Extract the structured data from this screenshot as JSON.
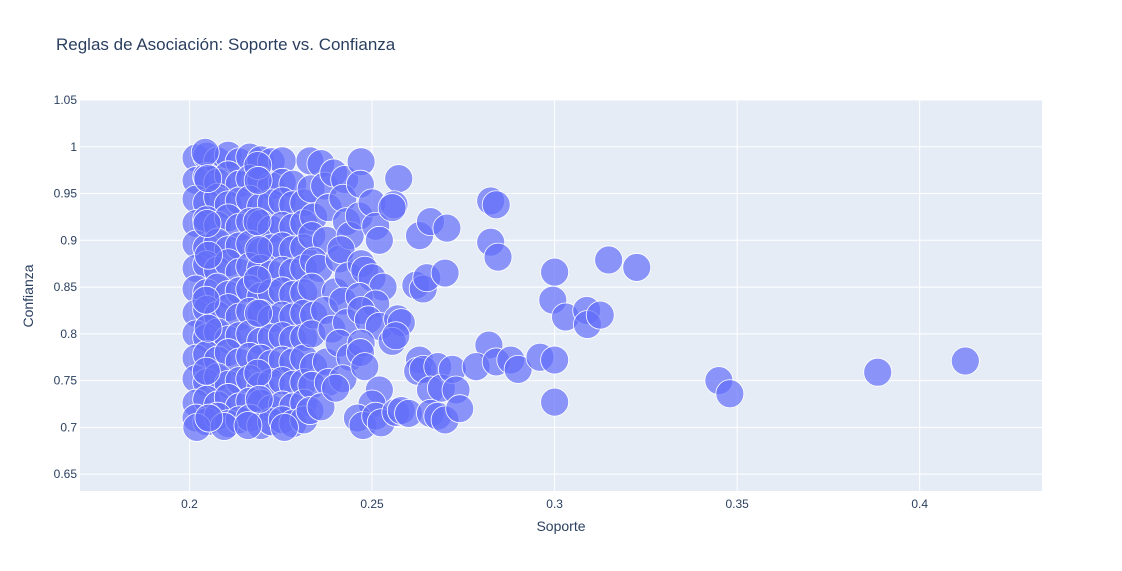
{
  "chart_data": {
    "type": "scatter",
    "title": "Reglas de Asociación: Soporte vs. Confianza",
    "xlabel": "Soporte",
    "ylabel": "Confianza",
    "xlim": [
      0.17,
      0.4335
    ],
    "ylim": [
      0.632,
      1.05
    ],
    "xticks": [
      0.2,
      0.25,
      0.3,
      0.35,
      0.4
    ],
    "xtick_labels": [
      "0.2",
      "0.25",
      "0.3",
      "0.35",
      "0.4"
    ],
    "yticks": [
      0.65,
      0.7,
      0.75,
      0.8,
      0.85,
      0.9,
      0.95,
      1,
      1.05
    ],
    "ytick_labels": [
      "0.65",
      "0.7",
      "0.75",
      "0.8",
      "0.85",
      "0.9",
      "0.95",
      "1",
      "1.05"
    ],
    "grid": true,
    "colors": {
      "plot_bg": "#e5ecf6",
      "marker": "#636efa",
      "text": "#2a3f5f"
    },
    "marker_opacity": 0.7,
    "points": [
      {
        "x": 0.2018,
        "y": 0.988
      },
      {
        "x": 0.2047,
        "y": 0.99
      },
      {
        "x": 0.2077,
        "y": 0.985
      },
      {
        "x": 0.2106,
        "y": 0.991
      },
      {
        "x": 0.2136,
        "y": 0.984
      },
      {
        "x": 0.2165,
        "y": 0.989
      },
      {
        "x": 0.2195,
        "y": 0.986
      },
      {
        "x": 0.2224,
        "y": 0.984
      },
      {
        "x": 0.2254,
        "y": 0.985
      },
      {
        "x": 0.2018,
        "y": 0.964
      },
      {
        "x": 0.2047,
        "y": 0.968
      },
      {
        "x": 0.2077,
        "y": 0.962
      },
      {
        "x": 0.2106,
        "y": 0.97
      },
      {
        "x": 0.2136,
        "y": 0.96
      },
      {
        "x": 0.2165,
        "y": 0.966
      },
      {
        "x": 0.2195,
        "y": 0.964
      },
      {
        "x": 0.2224,
        "y": 0.958
      },
      {
        "x": 0.2254,
        "y": 0.962
      },
      {
        "x": 0.2283,
        "y": 0.96
      },
      {
        "x": 0.2018,
        "y": 0.944
      },
      {
        "x": 0.2047,
        "y": 0.94
      },
      {
        "x": 0.2077,
        "y": 0.946
      },
      {
        "x": 0.2106,
        "y": 0.938
      },
      {
        "x": 0.2136,
        "y": 0.942
      },
      {
        "x": 0.2165,
        "y": 0.944
      },
      {
        "x": 0.2195,
        "y": 0.936
      },
      {
        "x": 0.2224,
        "y": 0.94
      },
      {
        "x": 0.2254,
        "y": 0.942
      },
      {
        "x": 0.2283,
        "y": 0.938
      },
      {
        "x": 0.2313,
        "y": 0.94
      },
      {
        "x": 0.2018,
        "y": 0.918
      },
      {
        "x": 0.2047,
        "y": 0.922
      },
      {
        "x": 0.2077,
        "y": 0.916
      },
      {
        "x": 0.2106,
        "y": 0.924
      },
      {
        "x": 0.2136,
        "y": 0.914
      },
      {
        "x": 0.2165,
        "y": 0.92
      },
      {
        "x": 0.2195,
        "y": 0.918
      },
      {
        "x": 0.2224,
        "y": 0.912
      },
      {
        "x": 0.2254,
        "y": 0.916
      },
      {
        "x": 0.2283,
        "y": 0.914
      },
      {
        "x": 0.2313,
        "y": 0.918
      },
      {
        "x": 0.2018,
        "y": 0.896
      },
      {
        "x": 0.2047,
        "y": 0.892
      },
      {
        "x": 0.2077,
        "y": 0.898
      },
      {
        "x": 0.2106,
        "y": 0.89
      },
      {
        "x": 0.2136,
        "y": 0.894
      },
      {
        "x": 0.2165,
        "y": 0.896
      },
      {
        "x": 0.2195,
        "y": 0.888
      },
      {
        "x": 0.2224,
        "y": 0.892
      },
      {
        "x": 0.2254,
        "y": 0.894
      },
      {
        "x": 0.2283,
        "y": 0.89
      },
      {
        "x": 0.2313,
        "y": 0.892
      },
      {
        "x": 0.2018,
        "y": 0.87
      },
      {
        "x": 0.2047,
        "y": 0.874
      },
      {
        "x": 0.2077,
        "y": 0.868
      },
      {
        "x": 0.2106,
        "y": 0.876
      },
      {
        "x": 0.2136,
        "y": 0.866
      },
      {
        "x": 0.2165,
        "y": 0.872
      },
      {
        "x": 0.2195,
        "y": 0.87
      },
      {
        "x": 0.2224,
        "y": 0.864
      },
      {
        "x": 0.2254,
        "y": 0.868
      },
      {
        "x": 0.2283,
        "y": 0.866
      },
      {
        "x": 0.2313,
        "y": 0.87
      },
      {
        "x": 0.2018,
        "y": 0.848
      },
      {
        "x": 0.2047,
        "y": 0.844
      },
      {
        "x": 0.2077,
        "y": 0.85
      },
      {
        "x": 0.2106,
        "y": 0.842
      },
      {
        "x": 0.2136,
        "y": 0.846
      },
      {
        "x": 0.2165,
        "y": 0.848
      },
      {
        "x": 0.2195,
        "y": 0.84
      },
      {
        "x": 0.2224,
        "y": 0.844
      },
      {
        "x": 0.2254,
        "y": 0.846
      },
      {
        "x": 0.2283,
        "y": 0.842
      },
      {
        "x": 0.2313,
        "y": 0.844
      },
      {
        "x": 0.2018,
        "y": 0.822
      },
      {
        "x": 0.2047,
        "y": 0.826
      },
      {
        "x": 0.2077,
        "y": 0.82
      },
      {
        "x": 0.2106,
        "y": 0.828
      },
      {
        "x": 0.2136,
        "y": 0.818
      },
      {
        "x": 0.2165,
        "y": 0.824
      },
      {
        "x": 0.2195,
        "y": 0.822
      },
      {
        "x": 0.2224,
        "y": 0.816
      },
      {
        "x": 0.2254,
        "y": 0.82
      },
      {
        "x": 0.2283,
        "y": 0.818
      },
      {
        "x": 0.2313,
        "y": 0.822
      },
      {
        "x": 0.2018,
        "y": 0.8
      },
      {
        "x": 0.2047,
        "y": 0.796
      },
      {
        "x": 0.2077,
        "y": 0.802
      },
      {
        "x": 0.2106,
        "y": 0.794
      },
      {
        "x": 0.2136,
        "y": 0.798
      },
      {
        "x": 0.2165,
        "y": 0.8
      },
      {
        "x": 0.2195,
        "y": 0.792
      },
      {
        "x": 0.2224,
        "y": 0.796
      },
      {
        "x": 0.2254,
        "y": 0.798
      },
      {
        "x": 0.2283,
        "y": 0.794
      },
      {
        "x": 0.2313,
        "y": 0.796
      },
      {
        "x": 0.2018,
        "y": 0.774
      },
      {
        "x": 0.2047,
        "y": 0.778
      },
      {
        "x": 0.2077,
        "y": 0.772
      },
      {
        "x": 0.2106,
        "y": 0.78
      },
      {
        "x": 0.2136,
        "y": 0.77
      },
      {
        "x": 0.2165,
        "y": 0.776
      },
      {
        "x": 0.2195,
        "y": 0.774
      },
      {
        "x": 0.2224,
        "y": 0.768
      },
      {
        "x": 0.2254,
        "y": 0.772
      },
      {
        "x": 0.2283,
        "y": 0.77
      },
      {
        "x": 0.2313,
        "y": 0.774
      },
      {
        "x": 0.2018,
        "y": 0.752
      },
      {
        "x": 0.2047,
        "y": 0.748
      },
      {
        "x": 0.2077,
        "y": 0.754
      },
      {
        "x": 0.2106,
        "y": 0.746
      },
      {
        "x": 0.2136,
        "y": 0.75
      },
      {
        "x": 0.2165,
        "y": 0.752
      },
      {
        "x": 0.2195,
        "y": 0.744
      },
      {
        "x": 0.2224,
        "y": 0.748
      },
      {
        "x": 0.2254,
        "y": 0.75
      },
      {
        "x": 0.2283,
        "y": 0.746
      },
      {
        "x": 0.2313,
        "y": 0.748
      },
      {
        "x": 0.2018,
        "y": 0.726
      },
      {
        "x": 0.2047,
        "y": 0.73
      },
      {
        "x": 0.2077,
        "y": 0.724
      },
      {
        "x": 0.2106,
        "y": 0.732
      },
      {
        "x": 0.2136,
        "y": 0.722
      },
      {
        "x": 0.2165,
        "y": 0.728
      },
      {
        "x": 0.2195,
        "y": 0.726
      },
      {
        "x": 0.2224,
        "y": 0.72
      },
      {
        "x": 0.2254,
        "y": 0.724
      },
      {
        "x": 0.2283,
        "y": 0.722
      },
      {
        "x": 0.2313,
        "y": 0.726
      },
      {
        "x": 0.2018,
        "y": 0.71
      },
      {
        "x": 0.2047,
        "y": 0.706
      },
      {
        "x": 0.2077,
        "y": 0.712
      },
      {
        "x": 0.2106,
        "y": 0.704
      },
      {
        "x": 0.2136,
        "y": 0.708
      },
      {
        "x": 0.2165,
        "y": 0.71
      },
      {
        "x": 0.2195,
        "y": 0.702
      },
      {
        "x": 0.2224,
        "y": 0.706
      },
      {
        "x": 0.2254,
        "y": 0.708
      },
      {
        "x": 0.2283,
        "y": 0.704
      },
      {
        "x": 0.2313,
        "y": 0.708
      },
      {
        "x": 0.202,
        "y": 0.7
      },
      {
        "x": 0.2095,
        "y": 0.701
      },
      {
        "x": 0.216,
        "y": 0.702
      },
      {
        "x": 0.226,
        "y": 0.7
      },
      {
        "x": 0.2043,
        "y": 0.994
      },
      {
        "x": 0.205,
        "y": 0.966
      },
      {
        "x": 0.2048,
        "y": 0.918
      },
      {
        "x": 0.2052,
        "y": 0.884
      },
      {
        "x": 0.2045,
        "y": 0.836
      },
      {
        "x": 0.2051,
        "y": 0.806
      },
      {
        "x": 0.2046,
        "y": 0.76
      },
      {
        "x": 0.2053,
        "y": 0.71
      },
      {
        "x": 0.2187,
        "y": 0.98
      },
      {
        "x": 0.2188,
        "y": 0.964
      },
      {
        "x": 0.2185,
        "y": 0.92
      },
      {
        "x": 0.219,
        "y": 0.89
      },
      {
        "x": 0.2186,
        "y": 0.858
      },
      {
        "x": 0.2189,
        "y": 0.822
      },
      {
        "x": 0.2187,
        "y": 0.758
      },
      {
        "x": 0.2191,
        "y": 0.73
      },
      {
        "x": 0.233,
        "y": 0.985
      },
      {
        "x": 0.236,
        "y": 0.982
      },
      {
        "x": 0.2333,
        "y": 0.955
      },
      {
        "x": 0.237,
        "y": 0.958
      },
      {
        "x": 0.234,
        "y": 0.925
      },
      {
        "x": 0.238,
        "y": 0.935
      },
      {
        "x": 0.2335,
        "y": 0.905
      },
      {
        "x": 0.2375,
        "y": 0.9
      },
      {
        "x": 0.234,
        "y": 0.878
      },
      {
        "x": 0.2355,
        "y": 0.87
      },
      {
        "x": 0.241,
        "y": 0.88
      },
      {
        "x": 0.2335,
        "y": 0.85
      },
      {
        "x": 0.24,
        "y": 0.845
      },
      {
        "x": 0.234,
        "y": 0.82
      },
      {
        "x": 0.237,
        "y": 0.825
      },
      {
        "x": 0.2335,
        "y": 0.8
      },
      {
        "x": 0.239,
        "y": 0.805
      },
      {
        "x": 0.234,
        "y": 0.765
      },
      {
        "x": 0.2375,
        "y": 0.77
      },
      {
        "x": 0.2335,
        "y": 0.745
      },
      {
        "x": 0.238,
        "y": 0.748
      },
      {
        "x": 0.233,
        "y": 0.718
      },
      {
        "x": 0.236,
        "y": 0.722
      },
      {
        "x": 0.2395,
        "y": 0.972
      },
      {
        "x": 0.2425,
        "y": 0.965
      },
      {
        "x": 0.242,
        "y": 0.945
      },
      {
        "x": 0.243,
        "y": 0.92
      },
      {
        "x": 0.244,
        "y": 0.905
      },
      {
        "x": 0.2415,
        "y": 0.89
      },
      {
        "x": 0.2435,
        "y": 0.862
      },
      {
        "x": 0.242,
        "y": 0.835
      },
      {
        "x": 0.243,
        "y": 0.812
      },
      {
        "x": 0.241,
        "y": 0.79
      },
      {
        "x": 0.244,
        "y": 0.775
      },
      {
        "x": 0.242,
        "y": 0.752
      },
      {
        "x": 0.24,
        "y": 0.742
      },
      {
        "x": 0.247,
        "y": 0.984
      },
      {
        "x": 0.2468,
        "y": 0.96
      },
      {
        "x": 0.2465,
        "y": 0.926
      },
      {
        "x": 0.25,
        "y": 0.94
      },
      {
        "x": 0.251,
        "y": 0.915
      },
      {
        "x": 0.252,
        "y": 0.9
      },
      {
        "x": 0.247,
        "y": 0.875
      },
      {
        "x": 0.248,
        "y": 0.868
      },
      {
        "x": 0.25,
        "y": 0.86
      },
      {
        "x": 0.253,
        "y": 0.85
      },
      {
        "x": 0.2465,
        "y": 0.84
      },
      {
        "x": 0.251,
        "y": 0.832
      },
      {
        "x": 0.247,
        "y": 0.825
      },
      {
        "x": 0.249,
        "y": 0.815
      },
      {
        "x": 0.252,
        "y": 0.808
      },
      {
        "x": 0.247,
        "y": 0.79
      },
      {
        "x": 0.2468,
        "y": 0.78
      },
      {
        "x": 0.248,
        "y": 0.765
      },
      {
        "x": 0.252,
        "y": 0.74
      },
      {
        "x": 0.25,
        "y": 0.725
      },
      {
        "x": 0.246,
        "y": 0.71
      },
      {
        "x": 0.2475,
        "y": 0.702
      },
      {
        "x": 0.251,
        "y": 0.712
      },
      {
        "x": 0.2525,
        "y": 0.705
      },
      {
        "x": 0.2573,
        "y": 0.966
      },
      {
        "x": 0.256,
        "y": 0.938
      },
      {
        "x": 0.2555,
        "y": 0.935
      },
      {
        "x": 0.257,
        "y": 0.816
      },
      {
        "x": 0.258,
        "y": 0.812
      },
      {
        "x": 0.2555,
        "y": 0.792
      },
      {
        "x": 0.2565,
        "y": 0.798
      },
      {
        "x": 0.2565,
        "y": 0.716
      },
      {
        "x": 0.258,
        "y": 0.718
      },
      {
        "x": 0.26,
        "y": 0.715
      },
      {
        "x": 0.263,
        "y": 0.905
      },
      {
        "x": 0.262,
        "y": 0.852
      },
      {
        "x": 0.264,
        "y": 0.848
      },
      {
        "x": 0.265,
        "y": 0.86
      },
      {
        "x": 0.266,
        "y": 0.92
      },
      {
        "x": 0.27,
        "y": 0.865
      },
      {
        "x": 0.2705,
        "y": 0.913
      },
      {
        "x": 0.263,
        "y": 0.772
      },
      {
        "x": 0.2625,
        "y": 0.76
      },
      {
        "x": 0.264,
        "y": 0.762
      },
      {
        "x": 0.268,
        "y": 0.765
      },
      {
        "x": 0.266,
        "y": 0.74
      },
      {
        "x": 0.269,
        "y": 0.742
      },
      {
        "x": 0.266,
        "y": 0.715
      },
      {
        "x": 0.268,
        "y": 0.712
      },
      {
        "x": 0.27,
        "y": 0.708
      },
      {
        "x": 0.272,
        "y": 0.762
      },
      {
        "x": 0.273,
        "y": 0.74
      },
      {
        "x": 0.274,
        "y": 0.72
      },
      {
        "x": 0.2825,
        "y": 0.942
      },
      {
        "x": 0.284,
        "y": 0.938
      },
      {
        "x": 0.2825,
        "y": 0.898
      },
      {
        "x": 0.2845,
        "y": 0.882
      },
      {
        "x": 0.282,
        "y": 0.788
      },
      {
        "x": 0.2785,
        "y": 0.765
      },
      {
        "x": 0.284,
        "y": 0.77
      },
      {
        "x": 0.288,
        "y": 0.772
      },
      {
        "x": 0.29,
        "y": 0.762
      },
      {
        "x": 0.296,
        "y": 0.775
      },
      {
        "x": 0.3,
        "y": 0.866
      },
      {
        "x": 0.2995,
        "y": 0.836
      },
      {
        "x": 0.303,
        "y": 0.818
      },
      {
        "x": 0.3,
        "y": 0.772
      },
      {
        "x": 0.3,
        "y": 0.727
      },
      {
        "x": 0.3088,
        "y": 0.825
      },
      {
        "x": 0.309,
        "y": 0.81
      },
      {
        "x": 0.3125,
        "y": 0.82
      },
      {
        "x": 0.3148,
        "y": 0.879
      },
      {
        "x": 0.3225,
        "y": 0.871
      },
      {
        "x": 0.345,
        "y": 0.75
      },
      {
        "x": 0.348,
        "y": 0.736
      },
      {
        "x": 0.3885,
        "y": 0.759
      },
      {
        "x": 0.4125,
        "y": 0.771
      }
    ]
  }
}
